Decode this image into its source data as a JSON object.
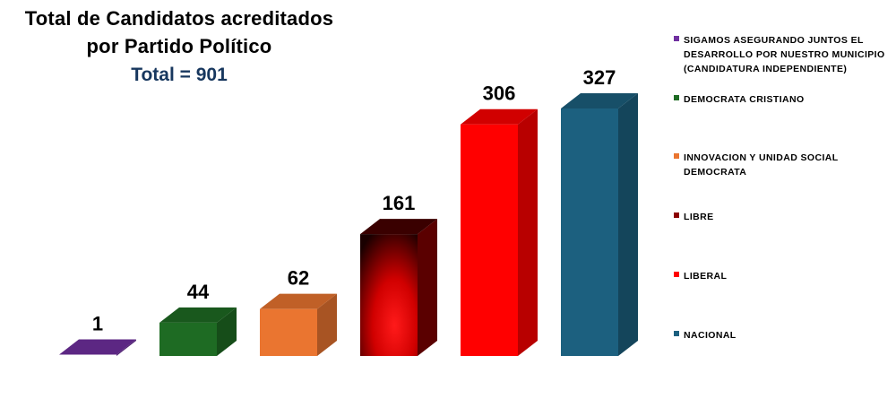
{
  "title_line1": "Total de Candidatos acreditados",
  "title_line2": "por Partido Político",
  "total_label": "Total = 901",
  "chart_data": {
    "type": "bar",
    "title": "Total de Candidatos acreditados por Partido Político",
    "subtitle": "Total = 901",
    "categories": [
      "SIGAMOS ASEGURANDO JUNTOS EL DESARROLLO POR NUESTRO MUNICIPIO (CANDIDATURA INDEPENDIENTE)",
      "DEMOCRATA CRISTIANO",
      "INNOVACION Y UNIDAD SOCIAL DEMOCRATA",
      "LIBRE",
      "LIBERAL",
      "NACIONAL"
    ],
    "values": [
      1,
      44,
      62,
      161,
      306,
      327
    ],
    "data_labels": [
      "1",
      "44",
      "62",
      "161",
      "306",
      "327"
    ],
    "colors": [
      "#7030a0",
      "#1e6b23",
      "#ea7530",
      "#c00000",
      "#ff0000",
      "#1c607f"
    ],
    "xlabel": "",
    "ylabel": "",
    "ylim": [
      0,
      327
    ],
    "grid": false,
    "legend_position": "right",
    "three_d": true
  },
  "legend": [
    {
      "label": "SIGAMOS ASEGURANDO JUNTOS EL DESARROLLO POR NUESTRO MUNICIPIO (CANDIDATURA INDEPENDIENTE)",
      "color": "#7030a0"
    },
    {
      "label": "DEMOCRATA CRISTIANO",
      "color": "#1e6b23"
    },
    {
      "label": "INNOVACION Y UNIDAD SOCIAL DEMOCRATA",
      "color": "#ea7530"
    },
    {
      "label": "LIBRE",
      "color": "#8b0000"
    },
    {
      "label": "LIBERAL",
      "color": "#ff0000"
    },
    {
      "label": "NACIONAL",
      "color": "#1c607f"
    }
  ]
}
